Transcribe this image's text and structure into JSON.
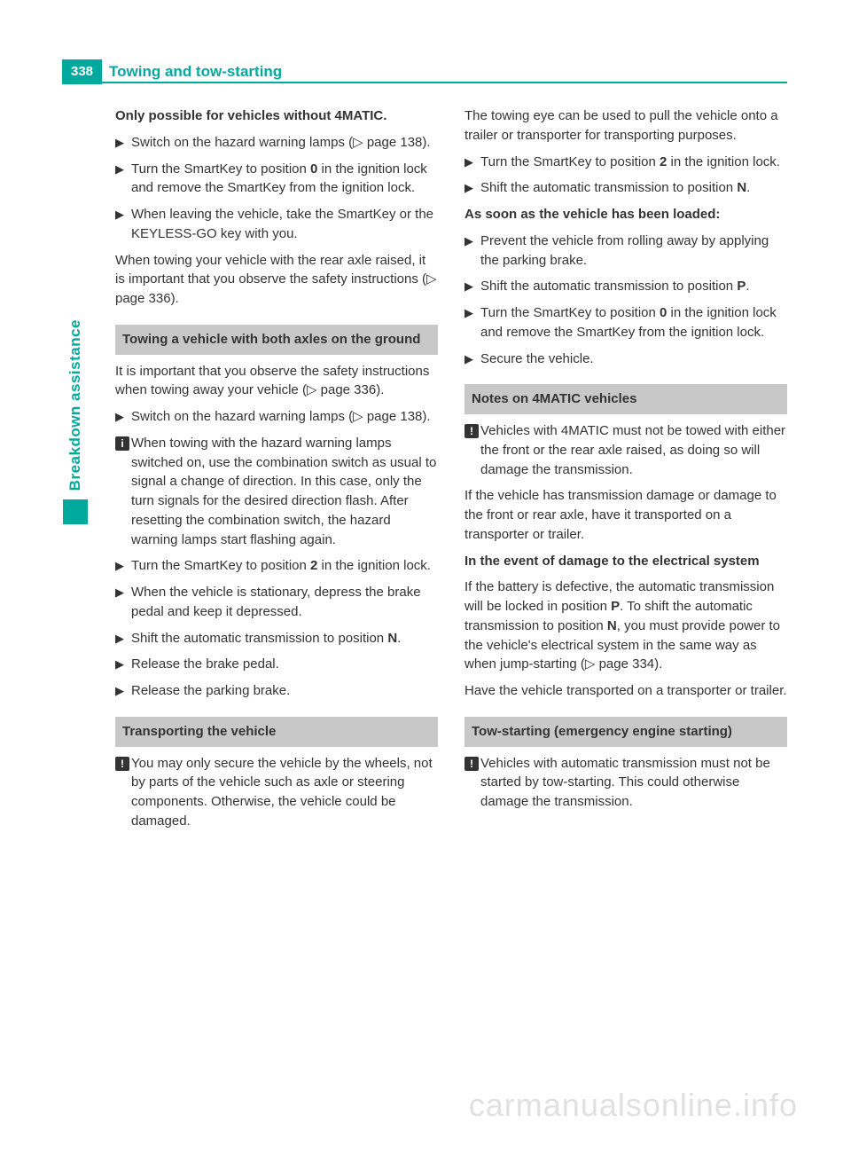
{
  "page_number": "338",
  "header_title": "Towing and tow-starting",
  "side_tab": "Breakdown assistance",
  "colors": {
    "accent": "#00a99d",
    "section_bg": "#c8c8c8",
    "text": "#333333",
    "icon_bg": "#333333"
  },
  "left": {
    "intro_bold": "Only possible for vehicles without 4MATIC.",
    "b1": "Switch on the hazard warning lamps (▷ page 138).",
    "b2a": "Turn the SmartKey to position ",
    "b2_pos": "0",
    "b2b": " in the ignition lock and remove the SmartKey from the ignition lock.",
    "b3": "When leaving the vehicle, take the SmartKey or the KEYLESS-GO key with you.",
    "p1": "When towing your vehicle with the rear axle raised, it is important that you observe the safety instructions (▷ page 336).",
    "sec1": "Towing a vehicle with both axles on the ground",
    "p2": "It is important that you observe the safety instructions when towing away your vehicle (▷ page 336).",
    "b4": "Switch on the hazard warning lamps (▷ page 138).",
    "info1": "When towing with the hazard warning lamps switched on, use the combination switch as usual to signal a change of direction. In this case, only the turn signals for the desired direction flash. After resetting the combination switch, the hazard warning lamps start flashing again.",
    "b5a": "Turn the SmartKey to position ",
    "b5_pos": "2",
    "b5b": " in the ignition lock.",
    "b6": "When the vehicle is stationary, depress the brake pedal and keep it depressed.",
    "b7a": "Shift the automatic transmission to position ",
    "b7_pos": "N",
    "b7b": ".",
    "b8": "Release the brake pedal.",
    "b9": "Release the parking brake.",
    "sec2": "Transporting the vehicle",
    "warn1": "You may only secure the vehicle by the wheels, not by parts of the vehicle such as axle or steering components. Otherwise, the vehicle could be damaged."
  },
  "right": {
    "p1": "The towing eye can be used to pull the vehicle onto a trailer or transporter for transporting purposes.",
    "b1a": "Turn the SmartKey to position ",
    "b1_pos": "2",
    "b1b": " in the ignition lock.",
    "b2a": "Shift the automatic transmission to position ",
    "b2_pos": "N",
    "b2b": ".",
    "p2_bold": "As soon as the vehicle has been loaded:",
    "b3": "Prevent the vehicle from rolling away by applying the parking brake.",
    "b4a": "Shift the automatic transmission to position ",
    "b4_pos": "P",
    "b4b": ".",
    "b5a": "Turn the SmartKey to position ",
    "b5_pos": "0",
    "b5b": " in the ignition lock and remove the SmartKey from the ignition lock.",
    "b6": "Secure the vehicle.",
    "sec1": "Notes on 4MATIC vehicles",
    "warn1": "Vehicles with 4MATIC must not be towed with either the front or the rear axle raised, as doing so will damage the transmission.",
    "p3": "If the vehicle has transmission damage or damage to the front or rear axle, have it transported on a transporter or trailer.",
    "p4_bold": "In the event of damage to the electrical system",
    "p5a": "If the battery is defective, the automatic transmission will be locked in position ",
    "p5_pos1": "P",
    "p5b": ". To shift the automatic transmission to position ",
    "p5_pos2": "N",
    "p5c": ", you must provide power to the vehicle's electrical system in the same way as when jump-starting (▷ page 334).",
    "p6": "Have the vehicle transported on a transporter or trailer.",
    "sec2": "Tow-starting (emergency engine starting)",
    "warn2": "Vehicles with automatic transmission must not be started by tow-starting. This could otherwise damage the transmission."
  },
  "watermark": "carmanualsonline.info",
  "glyphs": {
    "bullet": "▶",
    "info": "i",
    "warn": "!"
  }
}
